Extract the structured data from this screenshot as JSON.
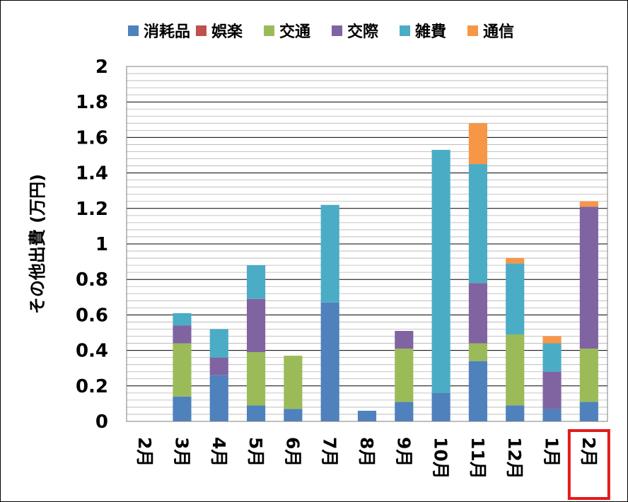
{
  "chart_data": {
    "type": "bar",
    "stacked": true,
    "ylabel": "その他出費 (万円)",
    "xlabel": "",
    "ylim": [
      0,
      2
    ],
    "y_ticks": [
      "0",
      "0.2",
      "0.4",
      "0.6",
      "0.8",
      "1",
      "1.2",
      "1.4",
      "1.6",
      "1.8",
      "2"
    ],
    "grid": true,
    "legend_position": "top",
    "categories": [
      "2月",
      "3月",
      "4月",
      "5月",
      "6月",
      "7月",
      "8月",
      "9月",
      "10月",
      "11月",
      "12月",
      "1月",
      "2月"
    ],
    "highlighted_category_index": 12,
    "highlight_color": "#e31a1c",
    "series": [
      {
        "name": "消耗品",
        "color": "#4f81bd",
        "values": [
          0,
          0.14,
          0.26,
          0.09,
          0.07,
          0.67,
          0.06,
          0.11,
          0.16,
          0.34,
          0.09,
          0.07,
          0.11
        ]
      },
      {
        "name": "娯楽",
        "color": "#c0504d",
        "values": [
          0,
          0,
          0,
          0,
          0,
          0,
          0,
          0,
          0,
          0,
          0,
          0,
          0
        ]
      },
      {
        "name": "交通",
        "color": "#9bbb59",
        "values": [
          0,
          0.3,
          0,
          0.3,
          0.3,
          0,
          0,
          0.3,
          0,
          0.1,
          0.4,
          0,
          0.3
        ]
      },
      {
        "name": "交際",
        "color": "#8064a2",
        "values": [
          0,
          0.1,
          0.1,
          0.3,
          0,
          0,
          0,
          0.1,
          0,
          0.34,
          0,
          0.21,
          0.8
        ]
      },
      {
        "name": "雑費",
        "color": "#4bacc6",
        "values": [
          0,
          0.07,
          0.16,
          0.19,
          0,
          0.55,
          0,
          0,
          1.37,
          0.67,
          0.4,
          0.16,
          0
        ]
      },
      {
        "name": "通信",
        "color": "#f79646",
        "values": [
          0,
          0,
          0,
          0,
          0,
          0,
          0,
          0,
          0,
          0.23,
          0.03,
          0.04,
          0.03
        ]
      }
    ]
  }
}
